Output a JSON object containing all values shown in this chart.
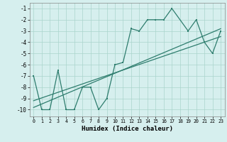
{
  "xlabel": "Humidex (Indice chaleur)",
  "xlim": [
    -0.5,
    23.5
  ],
  "ylim": [
    -10.6,
    -0.5
  ],
  "yticks": [
    -10,
    -9,
    -8,
    -7,
    -6,
    -5,
    -4,
    -3,
    -2,
    -1
  ],
  "xticks": [
    0,
    1,
    2,
    3,
    4,
    5,
    6,
    7,
    8,
    9,
    10,
    11,
    12,
    13,
    14,
    15,
    16,
    17,
    18,
    19,
    20,
    21,
    22,
    23
  ],
  "bg_color": "#d6efee",
  "line_color": "#2e7d6e",
  "grid_color": "#aad4cc",
  "zigzag_x": [
    0,
    1,
    2,
    3,
    4,
    5,
    6,
    7,
    8,
    9,
    10,
    11,
    12,
    13,
    14,
    15,
    16,
    17,
    19,
    20,
    21,
    22,
    23
  ],
  "zigzag_y": [
    -7,
    -10,
    -10,
    -6.5,
    -10,
    -10,
    -8,
    -8,
    -10,
    -9,
    -6,
    -5.8,
    -2.8,
    -3,
    -2,
    -2,
    -2,
    -1,
    -3,
    -2,
    -4,
    -5,
    -3
  ],
  "trend1_x": [
    0,
    23
  ],
  "trend1_y": [
    -9.8,
    -2.8
  ],
  "trend2_x": [
    0,
    23
  ],
  "trend2_y": [
    -9.2,
    -3.5
  ]
}
